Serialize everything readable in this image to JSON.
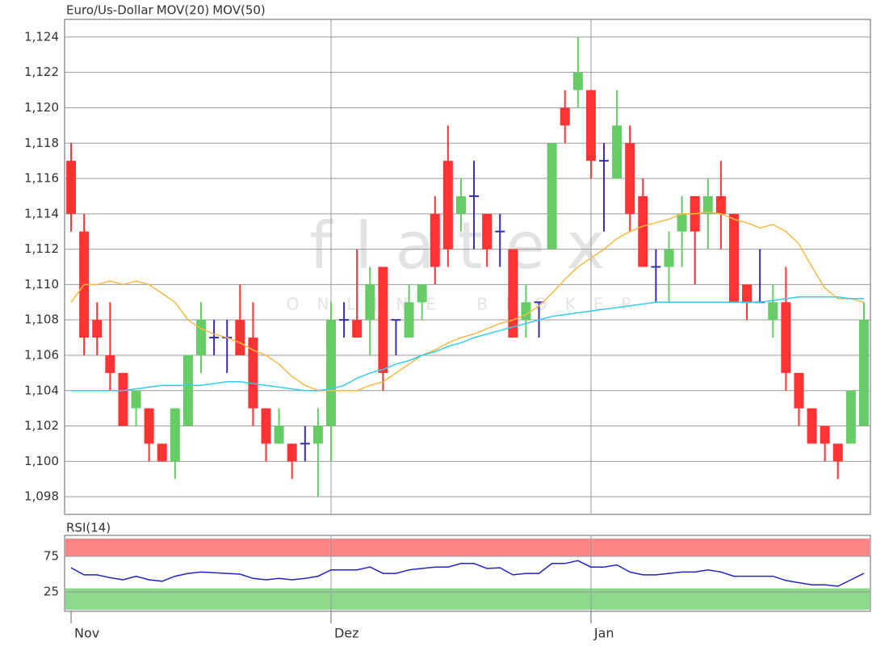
{
  "chart_data": [
    {
      "type": "candlestick",
      "name": "Euro/Us-Dollar",
      "color": "#f0603a",
      "watermark": [
        "flatex",
        "ONLINE BROKER"
      ],
      "categories": [
        "Nov",
        null,
        null,
        null,
        null,
        null,
        null,
        null,
        null,
        null,
        null,
        null,
        null,
        null,
        null,
        null,
        null,
        null,
        null,
        null,
        "Dez",
        null,
        null,
        null,
        null,
        null,
        null,
        null,
        null,
        null,
        null,
        null,
        null,
        null,
        null,
        null,
        null,
        null,
        null,
        null,
        "Jan",
        null,
        null,
        null,
        null,
        null,
        null,
        null,
        null,
        null,
        null,
        null,
        null,
        null,
        null,
        null,
        null,
        null,
        null,
        null,
        null,
        null
      ],
      "open": [
        1.117,
        1.113,
        1.108,
        1.106,
        1.105,
        1.103,
        1.103,
        1.101,
        1.1,
        1.102,
        1.106,
        1.107,
        1.107,
        1.108,
        1.107,
        1.103,
        1.101,
        1.101,
        1.101,
        1.101,
        1.102,
        1.108,
        1.108,
        1.108,
        1.111,
        1.108,
        1.107,
        1.109,
        1.114,
        1.117,
        1.114,
        1.115,
        1.114,
        1.113,
        1.112,
        1.108,
        1.109,
        1.112,
        1.12,
        1.121,
        1.121,
        1.117,
        1.116,
        1.118,
        1.115,
        1.111,
        1.111,
        1.113,
        1.115,
        1.114,
        1.115,
        1.114,
        1.11,
        1.109,
        1.108,
        1.109,
        1.105,
        1.103,
        1.102,
        1.101,
        1.101,
        1.102
      ],
      "close": [
        1.114,
        1.107,
        1.107,
        1.105,
        1.102,
        1.104,
        1.101,
        1.1,
        1.103,
        1.106,
        1.108,
        1.107,
        1.107,
        1.106,
        1.103,
        1.101,
        1.102,
        1.1,
        1.101,
        1.102,
        1.108,
        1.108,
        1.107,
        1.11,
        1.105,
        1.108,
        1.109,
        1.11,
        1.111,
        1.112,
        1.115,
        1.115,
        1.112,
        1.113,
        1.107,
        1.109,
        1.109,
        1.118,
        1.119,
        1.122,
        1.117,
        1.117,
        1.119,
        1.114,
        1.111,
        1.111,
        1.112,
        1.114,
        1.113,
        1.115,
        1.114,
        1.109,
        1.109,
        1.109,
        1.109,
        1.105,
        1.103,
        1.101,
        1.101,
        1.1,
        1.104,
        1.108
      ],
      "high": [
        1.118,
        1.114,
        1.109,
        1.109,
        1.105,
        1.104,
        1.103,
        1.101,
        1.103,
        1.106,
        1.109,
        1.108,
        1.108,
        1.11,
        1.109,
        1.103,
        1.103,
        1.101,
        1.102,
        1.103,
        1.109,
        1.109,
        1.112,
        1.111,
        1.111,
        1.108,
        1.11,
        1.11,
        1.115,
        1.119,
        1.116,
        1.117,
        1.114,
        1.114,
        1.112,
        1.11,
        1.109,
        1.118,
        1.121,
        1.124,
        1.121,
        1.118,
        1.121,
        1.119,
        1.116,
        1.112,
        1.113,
        1.115,
        1.115,
        1.116,
        1.117,
        1.114,
        1.11,
        1.112,
        1.11,
        1.111,
        1.105,
        1.103,
        1.102,
        1.101,
        1.104,
        1.109
      ],
      "low": [
        1.113,
        1.106,
        1.106,
        1.104,
        1.102,
        1.102,
        1.1,
        1.1,
        1.099,
        1.102,
        1.105,
        1.106,
        1.105,
        1.106,
        1.102,
        1.1,
        1.101,
        1.099,
        1.1,
        1.098,
        1.1,
        1.107,
        1.107,
        1.106,
        1.104,
        1.106,
        1.107,
        1.108,
        1.11,
        1.111,
        1.113,
        1.112,
        1.111,
        1.111,
        1.107,
        1.107,
        1.107,
        1.112,
        1.118,
        1.12,
        1.116,
        1.113,
        1.116,
        1.113,
        1.111,
        1.109,
        1.109,
        1.111,
        1.11,
        1.112,
        1.112,
        1.109,
        1.108,
        1.109,
        1.107,
        1.104,
        1.102,
        1.101,
        1.1,
        1.099,
        1.101,
        1.102
      ],
      "up_color": "#66cc66",
      "down_color": "#ff3333",
      "flat_color": "#3a2fa8",
      "series": [
        {
          "name": "MOV(20)",
          "color": "#f5b942",
          "values": [
            1.109,
            1.11,
            1.11,
            1.1102,
            1.11,
            1.1102,
            1.11,
            1.1095,
            1.109,
            1.108,
            1.1075,
            1.1072,
            1.107,
            1.1067,
            1.1063,
            1.106,
            1.1055,
            1.1048,
            1.1043,
            1.104,
            1.104,
            1.104,
            1.104,
            1.1043,
            1.1045,
            1.105,
            1.1055,
            1.106,
            1.1063,
            1.1067,
            1.107,
            1.1072,
            1.1075,
            1.1078,
            1.108,
            1.1083,
            1.1088,
            1.1095,
            1.1103,
            1.111,
            1.1115,
            1.112,
            1.1126,
            1.113,
            1.1133,
            1.1135,
            1.1137,
            1.114,
            1.114,
            1.1141,
            1.114,
            1.1137,
            1.1135,
            1.1132,
            1.1134,
            1.113,
            1.1123,
            1.111,
            1.1098,
            1.1092,
            1.1092,
            1.109
          ]
        },
        {
          "name": "MOV(50)",
          "color": "#33ccee",
          "values": [
            1.104,
            1.104,
            1.104,
            1.104,
            1.104,
            1.1041,
            1.1042,
            1.1043,
            1.1043,
            1.1043,
            1.1043,
            1.1044,
            1.1045,
            1.1045,
            1.1044,
            1.1043,
            1.1042,
            1.1041,
            1.104,
            1.104,
            1.1041,
            1.1043,
            1.1047,
            1.105,
            1.1052,
            1.1055,
            1.1057,
            1.106,
            1.1062,
            1.1065,
            1.1067,
            1.107,
            1.1072,
            1.1074,
            1.1076,
            1.1078,
            1.108,
            1.1082,
            1.1083,
            1.1084,
            1.1085,
            1.1086,
            1.1087,
            1.1088,
            1.1089,
            1.109,
            1.109,
            1.109,
            1.109,
            1.109,
            1.109,
            1.109,
            1.109,
            1.109,
            1.1091,
            1.1092,
            1.1093,
            1.1093,
            1.1093,
            1.1093,
            1.1092,
            1.1092
          ]
        }
      ],
      "ylim": [
        1.097,
        1.125
      ],
      "yticks": [
        {
          "value": 1.098,
          "label": "1,098"
        },
        {
          "value": 1.1,
          "label": "1,100"
        },
        {
          "value": 1.102,
          "label": "1,102"
        },
        {
          "value": 1.104,
          "label": "1,104"
        },
        {
          "value": 1.106,
          "label": "1,106"
        },
        {
          "value": 1.108,
          "label": "1,108"
        },
        {
          "value": 1.11,
          "label": "1,110"
        },
        {
          "value": 1.112,
          "label": "1,112"
        },
        {
          "value": 1.114,
          "label": "1,114"
        },
        {
          "value": 1.116,
          "label": "1,116"
        },
        {
          "value": 1.118,
          "label": "1,118"
        },
        {
          "value": 1.12,
          "label": "1,120"
        },
        {
          "value": 1.122,
          "label": "1,122"
        },
        {
          "value": 1.124,
          "label": "1,124"
        }
      ],
      "grid": true
    },
    {
      "type": "line",
      "series": [
        {
          "name": "RSI(14)",
          "color": "#2222cc",
          "values": [
            59,
            49,
            49,
            45,
            42,
            47,
            42,
            40,
            47,
            51,
            53,
            52,
            51,
            50,
            44,
            42,
            44,
            42,
            44,
            47,
            56,
            56,
            56,
            60,
            51,
            51,
            56,
            58,
            60,
            60,
            65,
            65,
            58,
            59,
            49,
            51,
            51,
            65,
            65,
            69,
            60,
            60,
            63,
            53,
            49,
            49,
            51,
            53,
            53,
            56,
            53,
            47,
            47,
            47,
            47,
            41,
            38,
            35,
            35,
            33,
            42,
            51
          ]
        }
      ],
      "zones": [
        {
          "from": 75,
          "to": 100,
          "color": "#ff8585"
        },
        {
          "from": 0,
          "to": 30,
          "color": "#8cd88c"
        }
      ],
      "ylim": [
        0,
        100
      ],
      "yticks": [
        25,
        75
      ],
      "grid": true
    }
  ]
}
